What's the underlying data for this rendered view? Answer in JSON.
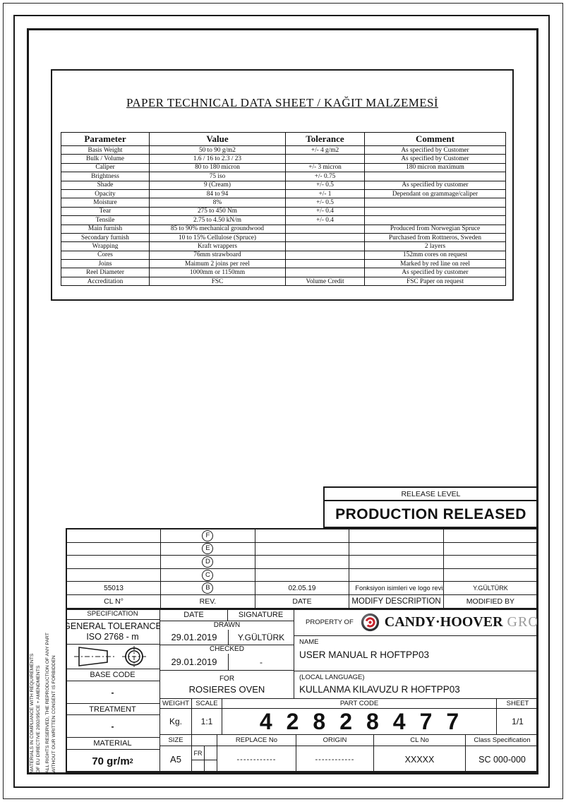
{
  "doc": {
    "title": "PAPER TECHNICAL DATA SHEET / KAĞIT MALZEMESİ"
  },
  "spec_table": {
    "headers": [
      "Parameter",
      "Value",
      "Tolerance",
      "Comment"
    ],
    "rows": [
      [
        "Basis Weight",
        "50 to 90 g/m2",
        "+/- 4 g/m2",
        "As specified by Customer"
      ],
      [
        "Bulk / Volume",
        "1.6 / 16 to 2.3 / 23",
        "",
        "As specified by Customer"
      ],
      [
        "Caliper",
        "80 to 180 micron",
        "+/- 3 micron",
        "180 micron maximum"
      ],
      [
        "Brightness",
        "75 iso",
        "+/- 0.75",
        ""
      ],
      [
        "Shade",
        "9 (Cream)",
        "+/- 0.5",
        "As specified by customer"
      ],
      [
        "Opacity",
        "84 to 94",
        "+/- 1",
        "Dependant on grammage/caliper"
      ],
      [
        "Moisture",
        "8%",
        "+/- 0.5",
        ""
      ],
      [
        "Tear",
        "275 to 450 Nm",
        "+/- 0.4",
        ""
      ],
      [
        "Tensile",
        "2.75 to 4.50 kN/m",
        "+/- 0.4",
        ""
      ],
      [
        "Main furnish",
        "85 to 90% mechanical groundwood",
        "",
        "Produced from Norwegian Spruce"
      ],
      [
        "Secondary furnish",
        "10 to 15% Cellulose (Spruce)",
        "",
        "Purchased from Rottneros, Sweden"
      ],
      [
        "Wrapping",
        "Kraft wrappers",
        "",
        "2 layers"
      ],
      [
        "Cores",
        "76mm strawboard",
        "",
        "152mm cores on request"
      ],
      [
        "Joins",
        "Maimum 2 joins per reel",
        "",
        "Marked by red line on reel"
      ],
      [
        "Reel Diameter",
        "1000mm or 1150mm",
        "",
        "As specified by customer"
      ],
      [
        "Accreditation",
        "FSC",
        "Volume Credit",
        "FSC Paper on request"
      ]
    ]
  },
  "release": {
    "label": "RELEASE LEVEL",
    "value": "PRODUCTION RELEASED"
  },
  "revision_table": {
    "header": {
      "cl": "CL N°",
      "rev": "REV.",
      "date": "DATE",
      "desc": "MODIFY DESCRIPTION",
      "by": "MODIFIED BY"
    },
    "rows": [
      {
        "cl": "",
        "rev": "F",
        "date": "",
        "desc": "",
        "by": ""
      },
      {
        "cl": "",
        "rev": "E",
        "date": "",
        "desc": "",
        "by": ""
      },
      {
        "cl": "",
        "rev": "D",
        "date": "",
        "desc": "",
        "by": ""
      },
      {
        "cl": "",
        "rev": "C",
        "date": "",
        "desc": "",
        "by": ""
      },
      {
        "cl": "55013",
        "rev": "B",
        "date": "02.05.19",
        "desc": "Fonksiyon isimleri ve logo revize edildi./Function names and logo have been revised.",
        "by": "Y.GÜLTÜRK"
      }
    ]
  },
  "side_note": {
    "line1": "MATERIALS IN COMPLIANCE WITH REQUIREMENTS",
    "line2": "OF EU DIRECTIVE 2002/95/CE + AMENDMENTS",
    "line3": "ALL RIGHTS RESERVED, THE REPRODUCTION OF ANY PART",
    "line4": "WITHOUT OUR WRITTEN CONSENT IS FORBIDDEN"
  },
  "title_block": {
    "specification": {
      "label": "SPECIFICATION",
      "tol_line1": "GENERAL TOLERANCE",
      "tol_line2": "ISO 2768 - m"
    },
    "base_code": {
      "label": "BASE CODE",
      "value": "-"
    },
    "treatment": {
      "label": "TREATMENT",
      "value": "-"
    },
    "material": {
      "label": "MATERIAL",
      "value": "70 gr/m",
      "value_sup": "2"
    },
    "drawn": {
      "header_date": "DATE",
      "header_signature": "SIGNATURE",
      "label": "DRAWN",
      "date": "29.01.2019",
      "signature": "Y.GÜLTÜRK"
    },
    "checked": {
      "label": "CHECKED",
      "date": "29.01.2019",
      "signature": "-"
    },
    "for": {
      "label": "FOR",
      "value": "ROSIERES OVEN"
    },
    "property": {
      "label": "PROPERTY OF",
      "brand": "CANDY·HOOVER",
      "group": "GROUP"
    },
    "name": {
      "label": "NAME",
      "value": "USER MANUAL R HOFTPP03"
    },
    "local": {
      "label": "(LOCAL LANGUAGE)",
      "value": "KULLANMA KILAVUZU R HOFTPP03"
    },
    "weight": {
      "label": "WEIGHT",
      "value": "Kg."
    },
    "scale": {
      "label": "SCALE",
      "value": "1:1"
    },
    "part_code": {
      "label": "PART CODE",
      "value": "42828477"
    },
    "sheet": {
      "label": "SHEET",
      "value": "1/1"
    },
    "size": {
      "label": "SIZE",
      "value": "A5",
      "fr": "FR"
    },
    "replace_no": {
      "label": "REPLACE No",
      "value": "------------"
    },
    "origin": {
      "label": "ORIGIN",
      "value": "------------"
    },
    "cl_no": {
      "label": "CL No",
      "value": "XXXXX"
    },
    "class_spec": {
      "label": "Class Specification",
      "value": "SC 000-000"
    }
  },
  "colors": {
    "line": "#1a1a1a",
    "logo_red": "#c5222b",
    "logo_dark": "#3f3f43",
    "group_gray": "#9b9b9b"
  }
}
